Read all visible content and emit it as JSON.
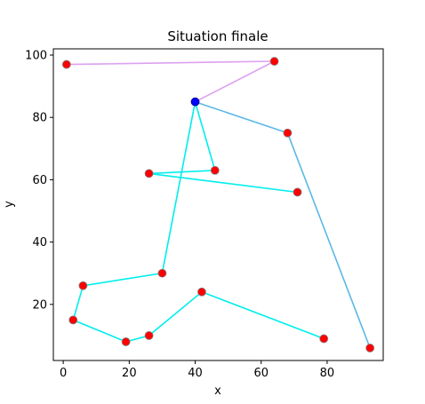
{
  "chart_data": {
    "type": "scatter",
    "title": "Situation finale",
    "xlabel": "x",
    "ylabel": "y",
    "xlim": [
      -3,
      97
    ],
    "ylim": [
      2,
      102
    ],
    "xticks": [
      0,
      20,
      40,
      60,
      80
    ],
    "yticks": [
      20,
      40,
      60,
      80,
      100
    ],
    "grid": false,
    "depot": {
      "x": 40,
      "y": 85,
      "color": "#0000ff"
    },
    "points": [
      {
        "x": 1,
        "y": 97
      },
      {
        "x": 64,
        "y": 98
      },
      {
        "x": 68,
        "y": 75
      },
      {
        "x": 93,
        "y": 6
      },
      {
        "x": 46,
        "y": 63
      },
      {
        "x": 26,
        "y": 62
      },
      {
        "x": 71,
        "y": 56
      },
      {
        "x": 30,
        "y": 30
      },
      {
        "x": 6,
        "y": 26
      },
      {
        "x": 3,
        "y": 15
      },
      {
        "x": 19,
        "y": 8
      },
      {
        "x": 26,
        "y": 10
      },
      {
        "x": 42,
        "y": 24
      },
      {
        "x": 79,
        "y": 9
      }
    ],
    "point_color": "#ff0000",
    "point_edge": "#808080",
    "routes": [
      {
        "color": "#dda0f0",
        "path": [
          [
            40,
            85
          ],
          [
            64,
            98
          ],
          [
            1,
            97
          ]
        ]
      },
      {
        "color": "#5cb8e8",
        "path": [
          [
            40,
            85
          ],
          [
            68,
            75
          ],
          [
            93,
            6
          ]
        ]
      },
      {
        "color": "#00eeee",
        "path": [
          [
            40,
            85
          ],
          [
            46,
            63
          ],
          [
            26,
            62
          ],
          [
            71,
            56
          ]
        ]
      },
      {
        "color": "#00eeee",
        "path": [
          [
            40,
            85
          ],
          [
            30,
            30
          ],
          [
            6,
            26
          ],
          [
            3,
            15
          ],
          [
            19,
            8
          ],
          [
            26,
            10
          ],
          [
            42,
            24
          ],
          [
            79,
            9
          ]
        ]
      }
    ]
  }
}
